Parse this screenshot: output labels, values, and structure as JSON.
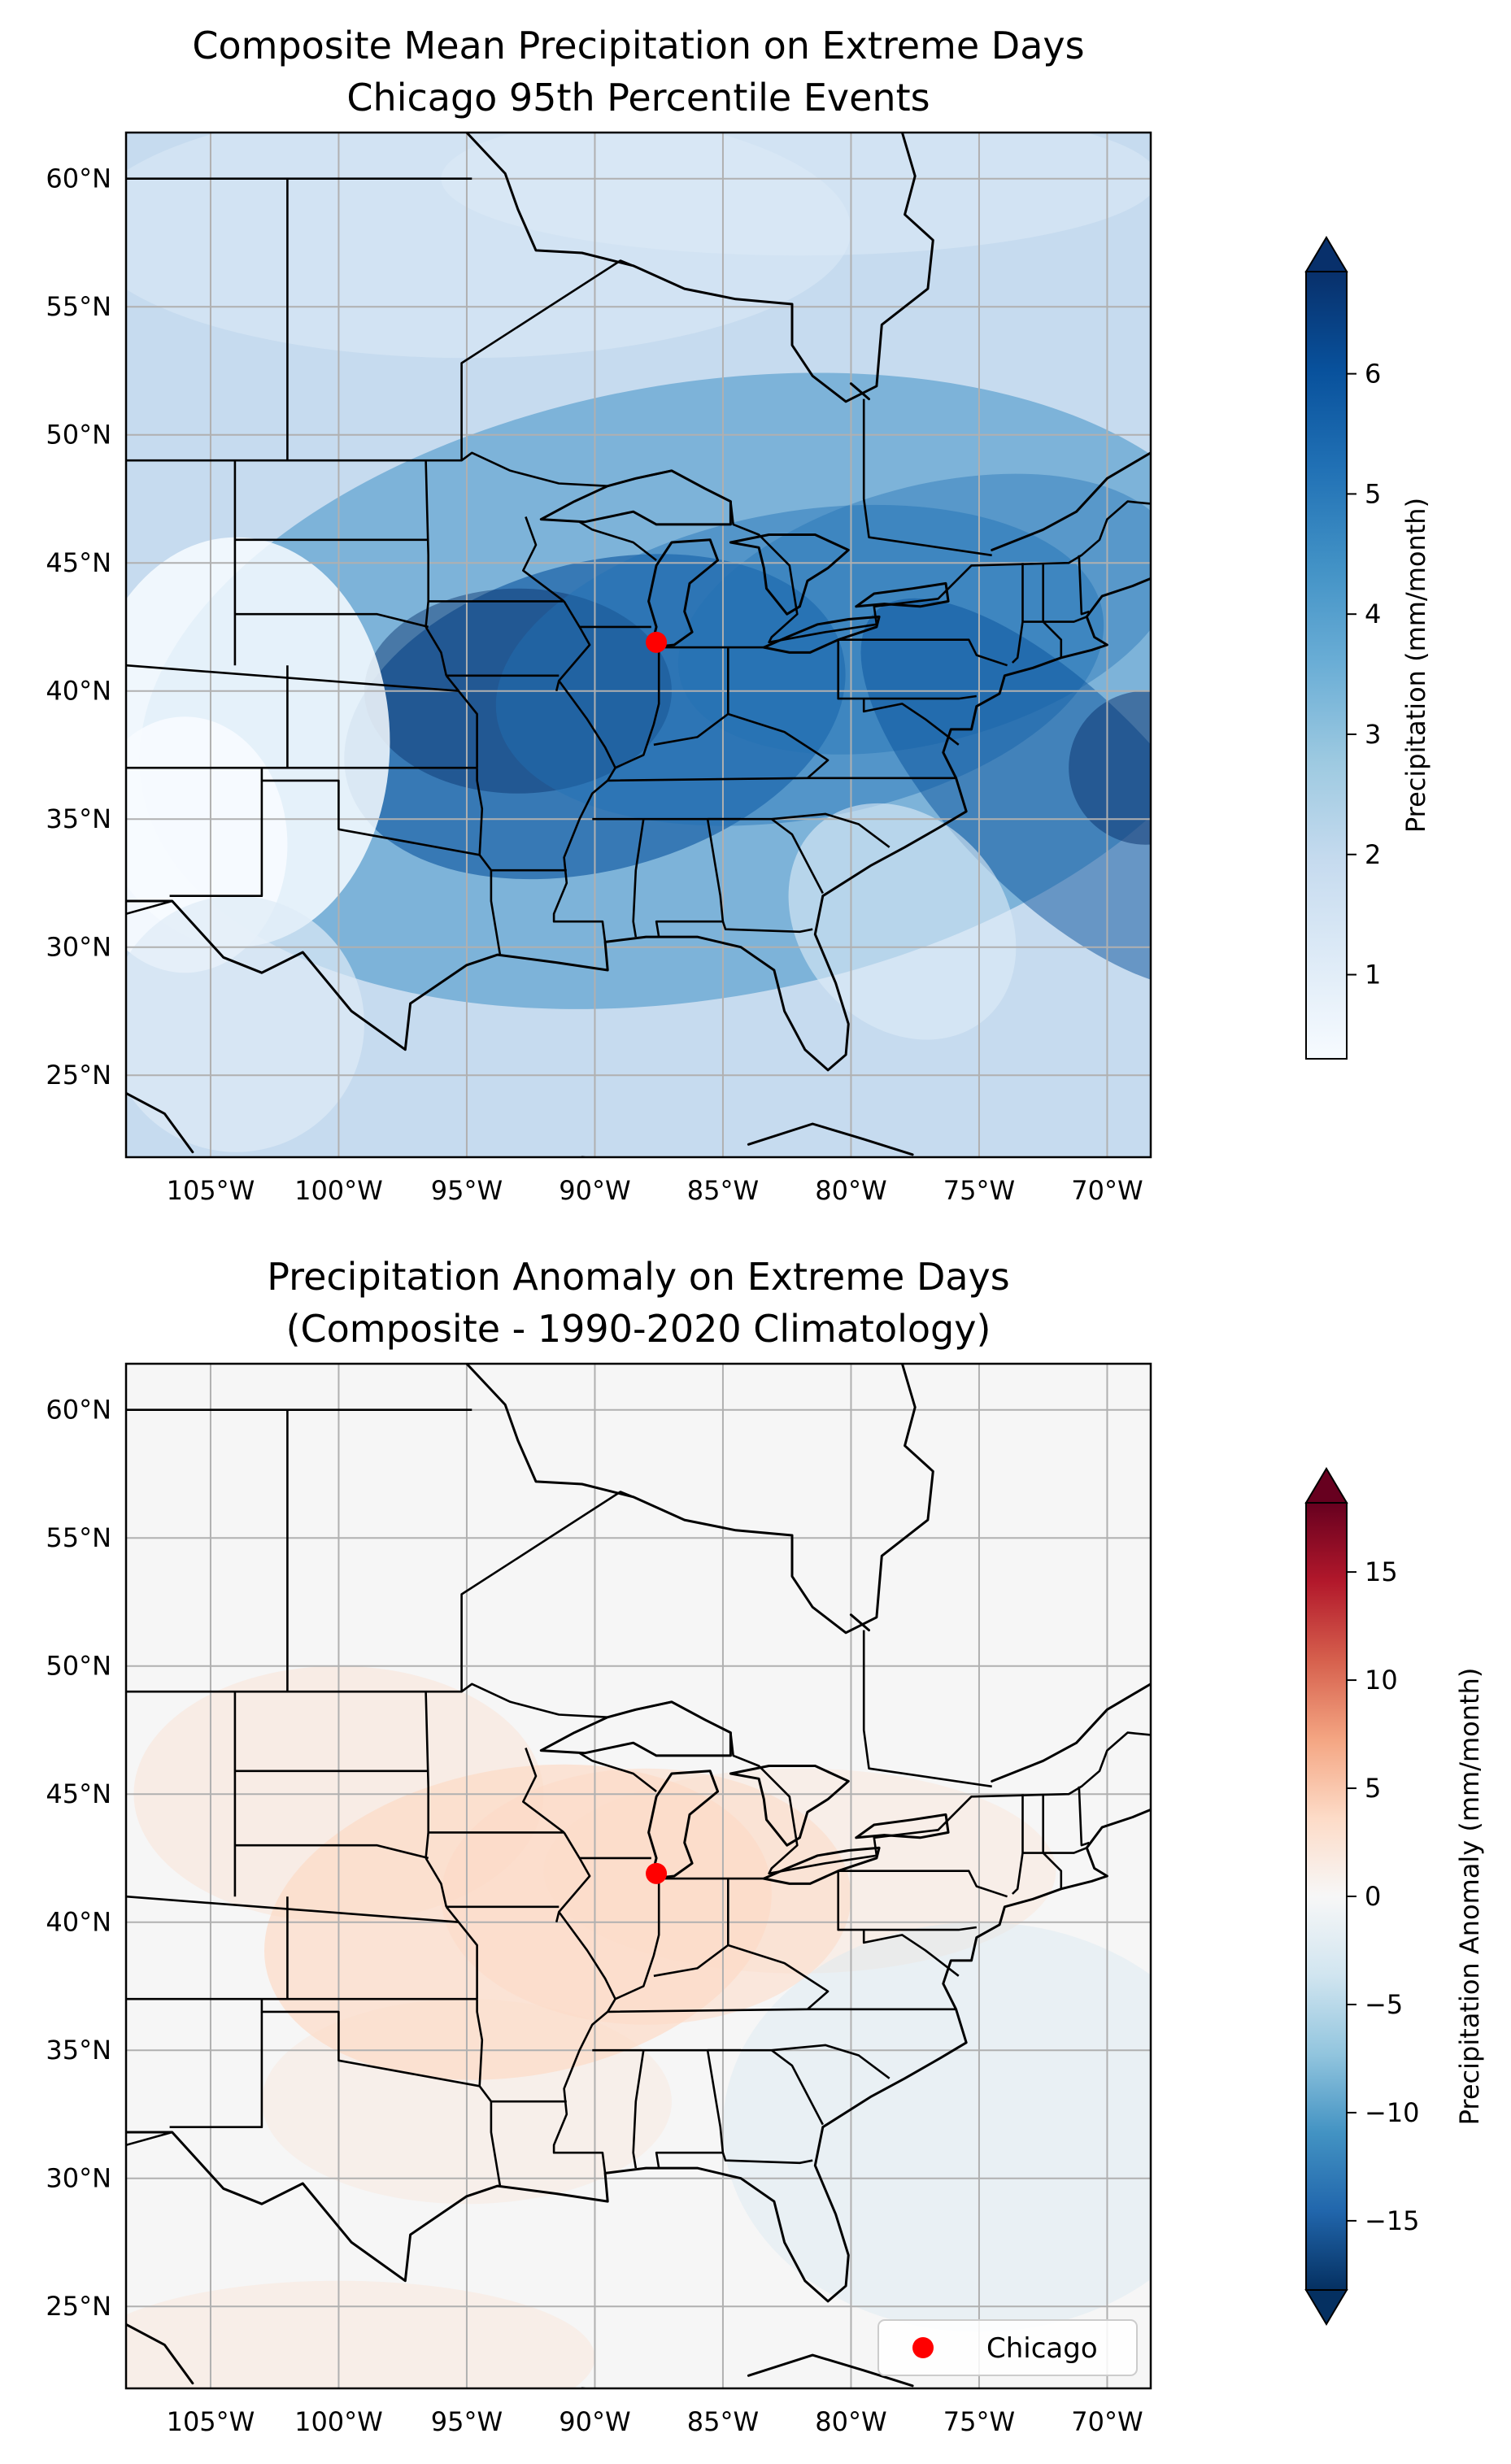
{
  "colors": {
    "blues": [
      "#f7fbff",
      "#deebf7",
      "#c6dbef",
      "#9ecae1",
      "#6baed6",
      "#4292c6",
      "#2171b5",
      "#08519c",
      "#08306b"
    ],
    "rdbu": [
      "#053061",
      "#2166ac",
      "#4393c3",
      "#92c5de",
      "#d1e5f0",
      "#f7f7f7",
      "#fddbc7",
      "#f4a582",
      "#d6604d",
      "#b2182b",
      "#67001f"
    ],
    "chicago_marker": "#ff0000"
  },
  "chart_data": [
    {
      "type": "heatmap",
      "title_line1": "Composite Mean Precipitation on Extreme Days",
      "title_line2": "Chicago 95th Percentile Events",
      "x_ticks": [
        "105°W",
        "100°W",
        "95°W",
        "90°W",
        "85°W",
        "80°W",
        "75°W",
        "70°W"
      ],
      "x_tick_values": [
        -105,
        -100,
        -95,
        -90,
        -85,
        -80,
        -75,
        -70
      ],
      "y_ticks": [
        "60°N",
        "55°N",
        "50°N",
        "45°N",
        "40°N",
        "35°N",
        "30°N",
        "25°N"
      ],
      "y_tick_values": [
        60,
        55,
        50,
        45,
        40,
        35,
        30,
        25
      ],
      "lon_range": [
        -108.3,
        -68.3
      ],
      "lat_range": [
        21.8,
        61.8
      ],
      "colorbar": {
        "label": "Precipitation (mm/month)",
        "range": [
          0.3,
          6.85
        ],
        "ticks": [
          "1",
          "2",
          "3",
          "4",
          "5",
          "6"
        ],
        "tick_values": [
          1,
          2,
          3,
          4,
          5,
          6
        ],
        "colormap": "Blues",
        "extend": "both"
      },
      "marker": {
        "name": "Chicago",
        "lon": -87.6,
        "lat": 41.9
      },
      "grid": true
    },
    {
      "type": "heatmap",
      "title_line1": "Precipitation Anomaly on Extreme Days",
      "title_line2": "(Composite - 1990-2020 Climatology)",
      "x_ticks": [
        "105°W",
        "100°W",
        "95°W",
        "90°W",
        "85°W",
        "80°W",
        "75°W",
        "70°W"
      ],
      "x_tick_values": [
        -105,
        -100,
        -95,
        -90,
        -85,
        -80,
        -75,
        -70
      ],
      "y_ticks": [
        "60°N",
        "55°N",
        "50°N",
        "45°N",
        "40°N",
        "35°N",
        "30°N",
        "25°N"
      ],
      "y_tick_values": [
        60,
        55,
        50,
        45,
        40,
        35,
        30,
        25
      ],
      "lon_range": [
        -108.3,
        -68.3
      ],
      "lat_range": [
        21.8,
        61.8
      ],
      "colorbar": {
        "label": "Precipitation Anomaly (mm/month)",
        "range": [
          -18.2,
          18.2
        ],
        "ticks": [
          "15",
          "10",
          "5",
          "0",
          "−5",
          "−10",
          "−15"
        ],
        "tick_values": [
          15,
          10,
          5,
          0,
          -5,
          -10,
          -15
        ],
        "colormap": "RdBu_r",
        "extend": "both"
      },
      "marker": {
        "name": "Chicago",
        "lon": -87.6,
        "lat": 41.9
      },
      "legend": {
        "label": "Chicago",
        "position": "lower-right"
      },
      "grid": true
    }
  ]
}
